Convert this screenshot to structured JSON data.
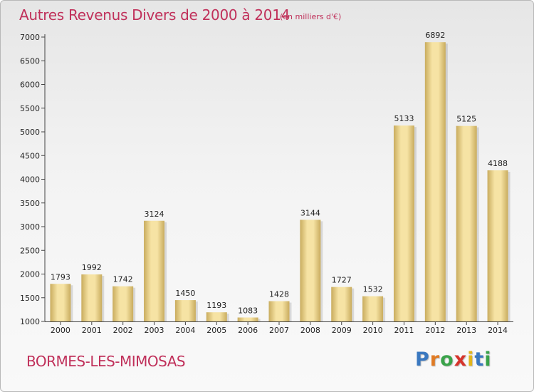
{
  "header": {
    "title": "Autres Revenus Divers de 2000 à 2014",
    "subtitle": "(en milliers d'€)"
  },
  "footer": {
    "commune": "BORMES-LES-MIMOSAS",
    "logo": {
      "letters": [
        "P",
        "r",
        "o",
        "x",
        "i",
        "t",
        "i"
      ]
    }
  },
  "colors": {
    "title": "#c0305a",
    "bar_light": "#f6e3a4",
    "bar_dark": "#c9ac5e"
  },
  "chart_data": {
    "type": "bar",
    "title": "Autres Revenus Divers de 2000 à 2014",
    "subtitle": "(en milliers d'€)",
    "categories": [
      "2000",
      "2001",
      "2002",
      "2003",
      "2004",
      "2005",
      "2006",
      "2007",
      "2008",
      "2009",
      "2010",
      "2011",
      "2012",
      "2013",
      "2014"
    ],
    "values": [
      1793,
      1992,
      1742,
      3124,
      1450,
      1193,
      1083,
      1428,
      3144,
      1727,
      1532,
      5133,
      6892,
      5125,
      4188
    ],
    "ylim": [
      1000,
      7000
    ],
    "yticks": [
      1000,
      1500,
      2000,
      2500,
      3000,
      3500,
      4000,
      4500,
      5000,
      5500,
      6000,
      6500,
      7000
    ],
    "grid": false,
    "legend": "none"
  }
}
